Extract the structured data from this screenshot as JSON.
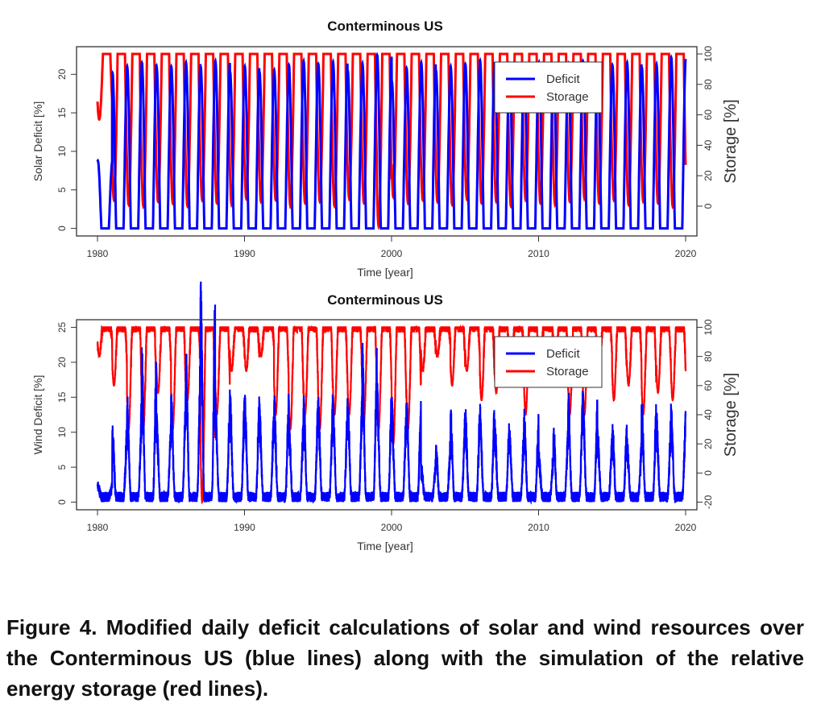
{
  "chart_data": [
    {
      "type": "line",
      "title": "Conterminous US",
      "xlabel": "Time [year]",
      "ylabel": "Solar Deficit [%]",
      "ylabel_right": "Storage [%]",
      "xlim": [
        1980,
        2020
      ],
      "ylim": [
        0,
        22.6
      ],
      "ylim_right": [
        0,
        100
      ],
      "xticks": [
        "1980",
        "1990",
        "2000",
        "2010",
        "2020"
      ],
      "yticks": [
        "0",
        "5",
        "10",
        "15",
        "20"
      ],
      "yticks_right": [
        "0",
        "20",
        "40",
        "60",
        "80",
        "100"
      ],
      "legend": {
        "position": "top-right",
        "entries": [
          "Deficit",
          "Storage"
        ]
      },
      "years": [
        1980,
        1981,
        1982,
        1983,
        1984,
        1985,
        1986,
        1987,
        1988,
        1989,
        1990,
        1991,
        1992,
        1993,
        1994,
        1995,
        1996,
        1997,
        1998,
        1999,
        2000,
        2001,
        2002,
        2003,
        2004,
        2005,
        2006,
        2007,
        2008,
        2009,
        2010,
        2011,
        2012,
        2013,
        2014,
        2015,
        2016,
        2017,
        2018,
        2019
      ],
      "series": [
        {
          "name": "Deficit",
          "color": "#0000ff",
          "annual_peak": [
            8.8,
            20.2,
            21,
            21.5,
            21,
            21,
            21.5,
            21,
            21.7,
            20.3,
            21,
            20.3,
            20.5,
            21.2,
            21.7,
            21.3,
            21.6,
            20.5,
            21.4,
            22.5,
            19.1,
            20.8,
            21.5,
            20.5,
            21,
            21.3,
            21.8,
            20.6,
            21.2,
            21,
            21.5,
            20.8,
            21.3,
            21.7,
            21,
            21.2,
            21.5,
            20.9,
            21.3,
            22.2
          ]
        },
        {
          "name": "Storage",
          "color": "#ff0000",
          "annual_trough": [
            57,
            4,
            1,
            0,
            3,
            2,
            0,
            4,
            2,
            1,
            5,
            3,
            4,
            0,
            2,
            3,
            0,
            5,
            2,
            -13,
            6,
            2,
            4,
            3,
            1,
            5,
            2,
            3,
            0,
            4,
            2,
            1,
            3,
            5,
            2,
            4,
            1,
            3,
            2,
            0
          ]
        }
      ]
    },
    {
      "type": "line",
      "title": "Conterminous US",
      "xlabel": "Time [year]",
      "ylabel": "Wind Deficit [%]",
      "ylabel_right": "Storage [%]",
      "xlim": [
        1980,
        2020
      ],
      "ylim": [
        0,
        25
      ],
      "ylim_right": [
        -20,
        100
      ],
      "xticks": [
        "1980",
        "1990",
        "2000",
        "2010",
        "2020"
      ],
      "yticks": [
        "0",
        "5",
        "10",
        "15",
        "20",
        "25"
      ],
      "yticks_right": [
        "-20",
        "0",
        "20",
        "40",
        "60",
        "80",
        "100"
      ],
      "legend": {
        "position": "top-right",
        "entries": [
          "Deficit",
          "Storage"
        ]
      },
      "years": [
        1980,
        1981,
        1982,
        1983,
        1984,
        1985,
        1986,
        1987,
        1988,
        1989,
        1990,
        1991,
        1992,
        1993,
        1994,
        1995,
        1996,
        1997,
        1998,
        1999,
        2000,
        2001,
        2002,
        2003,
        2004,
        2005,
        2006,
        2007,
        2008,
        2009,
        2010,
        2011,
        2012,
        2013,
        2014,
        2015,
        2016,
        2017,
        2018,
        2019
      ],
      "series": [
        {
          "name": "Deficit",
          "color": "#0000ff",
          "annual_peak": [
            1.5,
            8.5,
            11.5,
            17.5,
            10,
            12,
            17,
            25,
            12,
            12,
            12,
            11,
            11.8,
            9,
            12,
            12,
            11,
            12,
            17.5,
            13,
            11,
            11.5,
            4,
            6.5,
            10,
            10,
            11,
            9,
            8,
            10,
            5,
            8,
            12.5,
            12,
            7.5,
            9,
            6.5,
            11,
            10,
            10.5
          ]
        },
        {
          "name": "Storage",
          "color": "#ff0000",
          "annual_trough": [
            80,
            60,
            30,
            30,
            55,
            30,
            50,
            -20,
            40,
            70,
            70,
            80,
            40,
            30,
            40,
            30,
            40,
            40,
            35,
            30,
            20,
            30,
            70,
            80,
            60,
            70,
            50,
            55,
            60,
            40,
            80,
            60,
            40,
            40,
            70,
            50,
            60,
            40,
            55,
            50
          ]
        }
      ]
    }
  ],
  "caption": "Figure 4. Modified daily deficit calculations of solar and wind resources over the Conterminous US (blue lines) along with the simulation of the relative energy storage (red lines)."
}
